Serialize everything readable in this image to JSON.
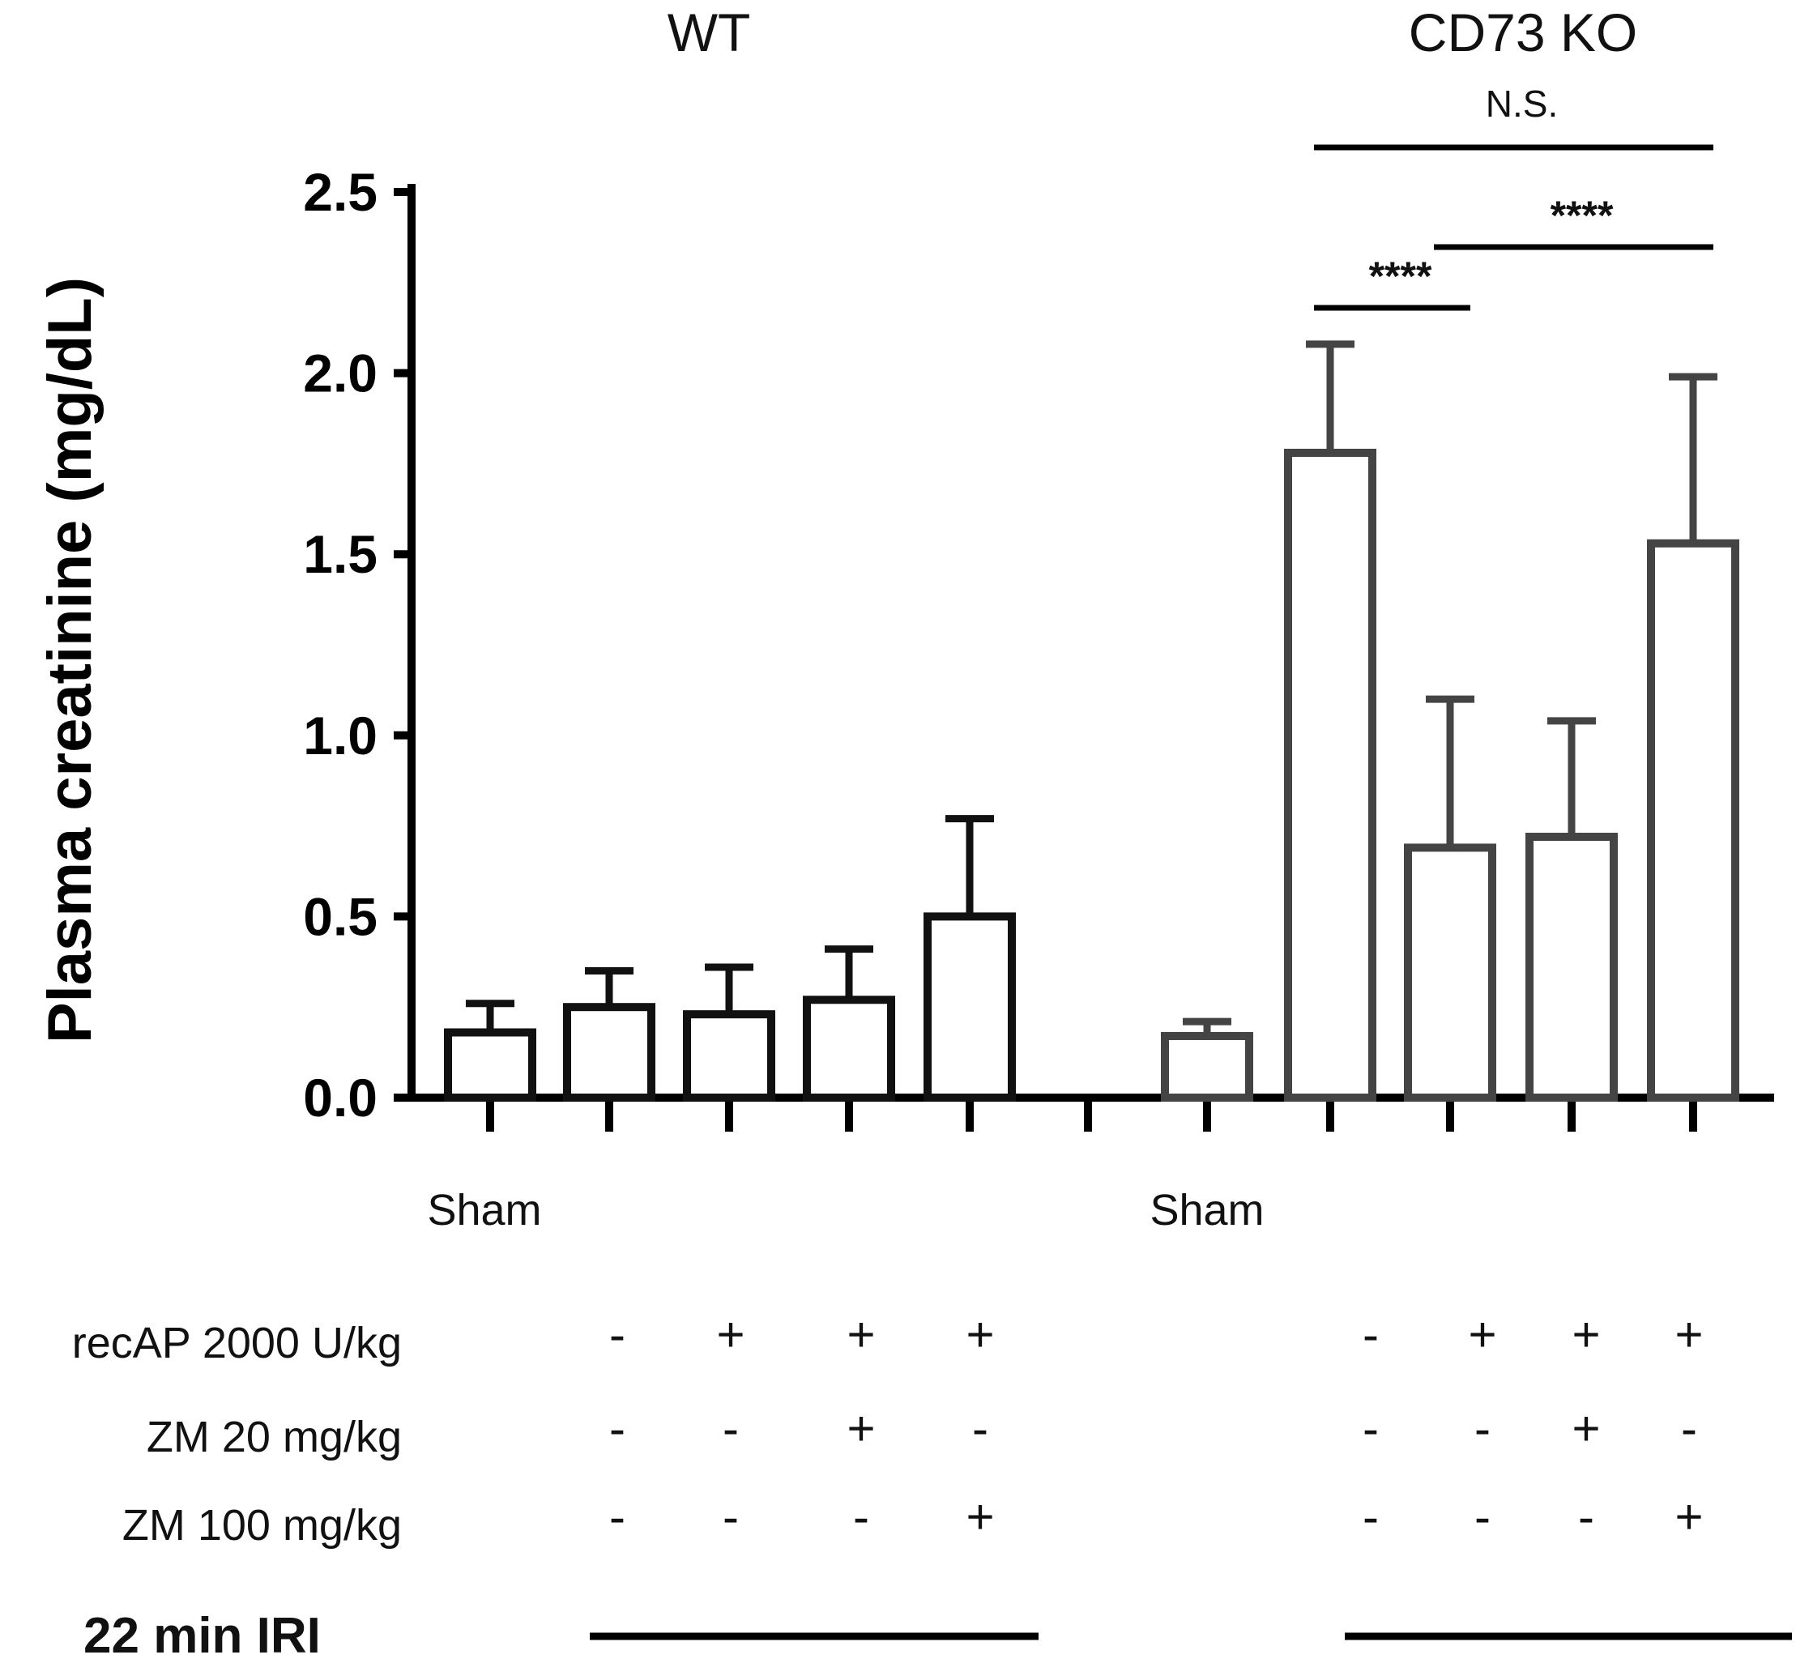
{
  "chart_data": {
    "type": "bar",
    "ylabel": "Plasma creatinine (mg/dL)",
    "ylim": [
      0,
      2.5
    ],
    "yticks": [
      "0.0",
      "0.5",
      "1.0",
      "1.5",
      "2.0",
      "2.5"
    ],
    "group_titles": [
      "WT",
      "CD73 KO"
    ],
    "sham_label": "Sham",
    "treatment_rows": [
      {
        "label": "recAP 2000 U/kg",
        "wt": [
          "-",
          "+",
          "+",
          "+"
        ],
        "ko": [
          "-",
          "+",
          "+",
          "+"
        ]
      },
      {
        "label": "ZM 20 mg/kg",
        "wt": [
          "-",
          "-",
          "+",
          "-"
        ],
        "ko": [
          "-",
          "-",
          "+",
          "-"
        ]
      },
      {
        "label": "ZM 100 mg/kg",
        "wt": [
          "-",
          "-",
          "-",
          "+"
        ],
        "ko": [
          "-",
          "-",
          "-",
          "+"
        ]
      }
    ],
    "iri_label": "22 min IRI",
    "bars": [
      {
        "group": "WT",
        "condition": "Sham",
        "value": 0.18,
        "error": 0.08
      },
      {
        "group": "WT",
        "condition": "IRI",
        "value": 0.25,
        "error": 0.1
      },
      {
        "group": "WT",
        "condition": "IRI + recAP",
        "value": 0.23,
        "error": 0.13
      },
      {
        "group": "WT",
        "condition": "IRI + recAP + ZM 20",
        "value": 0.27,
        "error": 0.14
      },
      {
        "group": "WT",
        "condition": "IRI + recAP + ZM 100",
        "value": 0.5,
        "error": 0.27
      },
      {
        "group": "CD73 KO",
        "condition": "Sham",
        "value": 0.17,
        "error": 0.04
      },
      {
        "group": "CD73 KO",
        "condition": "IRI",
        "value": 1.78,
        "error": 0.3
      },
      {
        "group": "CD73 KO",
        "condition": "IRI + recAP",
        "value": 0.69,
        "error": 0.41
      },
      {
        "group": "CD73 KO",
        "condition": "IRI + recAP + ZM 20",
        "value": 0.72,
        "error": 0.32
      },
      {
        "group": "CD73 KO",
        "condition": "IRI + recAP + ZM 100",
        "value": 1.53,
        "error": 0.46
      }
    ],
    "significance": [
      {
        "from": 6,
        "to": 9,
        "label": "N.S."
      },
      {
        "from": 7,
        "to": 9,
        "label": "****"
      },
      {
        "from": 6,
        "to": 7,
        "label": "****"
      }
    ],
    "colors": {
      "wt": "#111111",
      "ko": "#444444"
    }
  }
}
